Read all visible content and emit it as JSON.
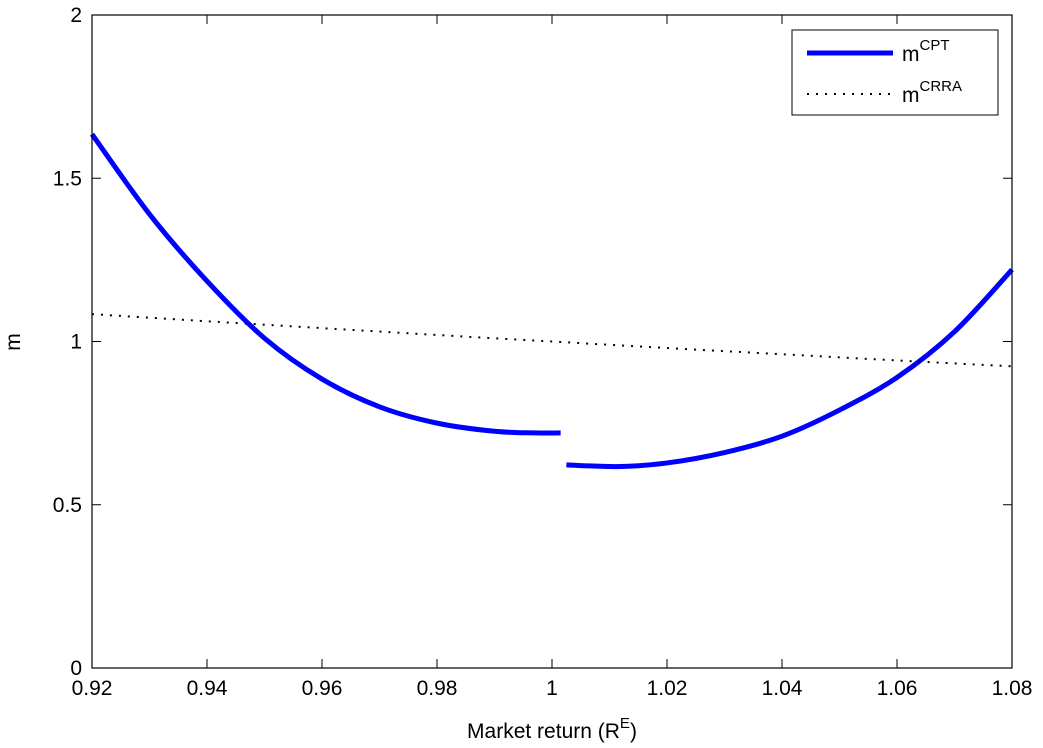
{
  "chart_data": {
    "type": "line",
    "title": "",
    "xlabel": "Market return (R",
    "xlabel_sup": "E",
    "xlabel_end": ")",
    "ylabel": "m",
    "xlim": [
      0.92,
      1.08
    ],
    "ylim": [
      0,
      2
    ],
    "xticks": [
      0.92,
      0.94,
      0.96,
      0.98,
      1,
      1.02,
      1.04,
      1.06,
      1.08
    ],
    "xtick_labels": [
      "0.92",
      "0.94",
      "0.96",
      "0.98",
      "1",
      "1.02",
      "1.04",
      "1.06",
      "1.08"
    ],
    "yticks": [
      0,
      0.5,
      1,
      1.5,
      2
    ],
    "ytick_labels": [
      "0",
      "0.5",
      "1",
      "1.5",
      "2"
    ],
    "grid": false,
    "legend_position": "top-right",
    "series": [
      {
        "name": "m",
        "name_sup": "CPT",
        "style": "solid",
        "color": "#0000ff",
        "segments": [
          {
            "x": [
              0.92,
              0.93,
              0.94,
              0.95,
              0.96,
              0.97,
              0.98,
              0.99,
              0.997,
              1.0015
            ],
            "y": [
              1.635,
              1.39,
              1.185,
              1.01,
              0.885,
              0.8,
              0.75,
              0.725,
              0.72,
              0.72
            ]
          },
          {
            "x": [
              1.0025,
              1.005,
              1.012,
              1.02,
              1.03,
              1.04,
              1.05,
              1.06,
              1.07,
              1.08
            ],
            "y": [
              0.622,
              0.62,
              0.617,
              0.628,
              0.66,
              0.71,
              0.79,
              0.89,
              1.03,
              1.22
            ]
          }
        ]
      },
      {
        "name": "m",
        "name_sup": "CRRA",
        "style": "dotted",
        "color": "#000000",
        "segments": [
          {
            "x": [
              0.92,
              0.94,
              0.96,
              0.98,
              1.0,
              1.02,
              1.04,
              1.06,
              1.08
            ],
            "y": [
              1.084,
              1.062,
              1.041,
              1.02,
              1.0,
              0.98,
              0.961,
              0.942,
              0.924
            ]
          }
        ]
      }
    ]
  }
}
